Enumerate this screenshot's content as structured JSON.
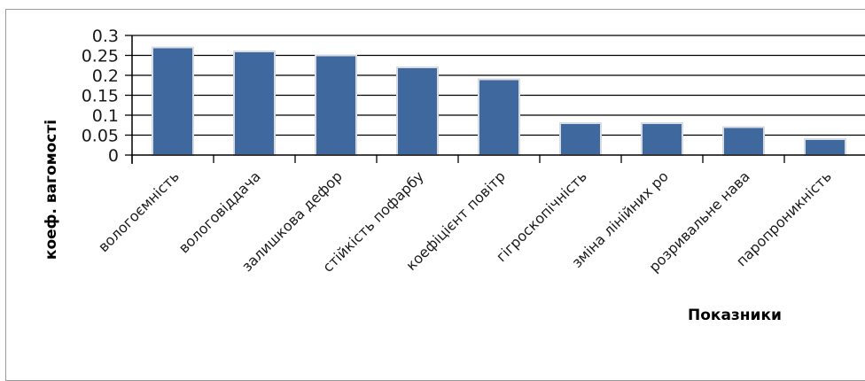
{
  "chart_data": {
    "type": "bar",
    "categories": [
      "вологоємність",
      "вологовіддача",
      "залишкова дефор",
      "стійкість пофарбу",
      "коефіцієнт повітр",
      "гігроскопічність",
      "зміна лінійних ро",
      "розривальне нава",
      "паропроникність"
    ],
    "series": [
      {
        "values": [
          0.27,
          0.26,
          0.25,
          0.22,
          0.19,
          0.08,
          0.08,
          0.07,
          0.04
        ]
      }
    ],
    "ylabel": "коеф. вагомості",
    "xlabel": "Показники",
    "ylim": [
      0,
      0.3
    ],
    "yticks": [
      0,
      0.05,
      0.1,
      0.15,
      0.2,
      0.25,
      0.3
    ],
    "ytick_labels": [
      "0",
      "0.05",
      "0.1",
      "0.15",
      "0.2",
      "0.25",
      "0.3"
    ],
    "grid": true,
    "colors": {
      "bar_fill": "#3f689e",
      "bar_edge": "#d7dbe2",
      "gridline": "#000000",
      "axis": "#000000"
    }
  }
}
